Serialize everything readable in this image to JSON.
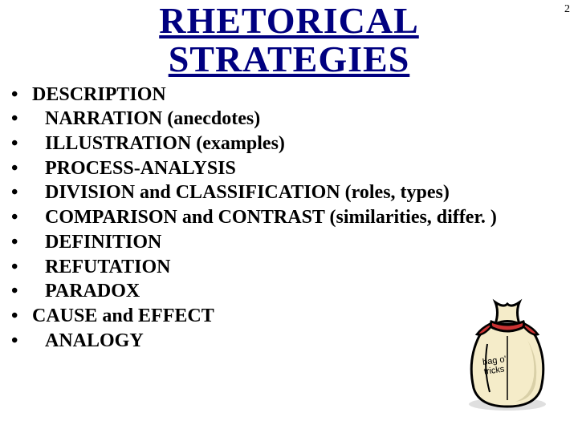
{
  "page_number": "2",
  "title_line1": "RHETORICAL",
  "title_line2": "STRATEGIES",
  "title_color": "#000080",
  "title_fontsize": 46,
  "bullet_fontsize": 24,
  "background_color": "#ffffff",
  "bullets": [
    {
      "text": "DESCRIPTION",
      "indent": 0
    },
    {
      "text": "NARRATION (anecdotes)",
      "indent": 1
    },
    {
      "text": "ILLUSTRATION (examples)",
      "indent": 1
    },
    {
      "text": "PROCESS-ANALYSIS",
      "indent": 1
    },
    {
      "text": "DIVISION and CLASSIFICATION (roles, types)",
      "indent": 1
    },
    {
      "text": "COMPARISON and CONTRAST (similarities, differ. )",
      "indent": 1
    },
    {
      "text": "DEFINITION",
      "indent": 1
    },
    {
      "text": "REFUTATION",
      "indent": 1
    },
    {
      "text": "PARADOX",
      "indent": 1
    },
    {
      "text": "CAUSE and EFFECT",
      "indent": 0
    },
    {
      "text": "ANALOGY",
      "indent": 1
    }
  ],
  "bag": {
    "label_line1": "bag o'",
    "label_line2": "tricks",
    "fill_color": "#f5ecc9",
    "tie_color": "#cc3333",
    "outline_color": "#000000",
    "shadow_color": "#d9d0a8"
  }
}
